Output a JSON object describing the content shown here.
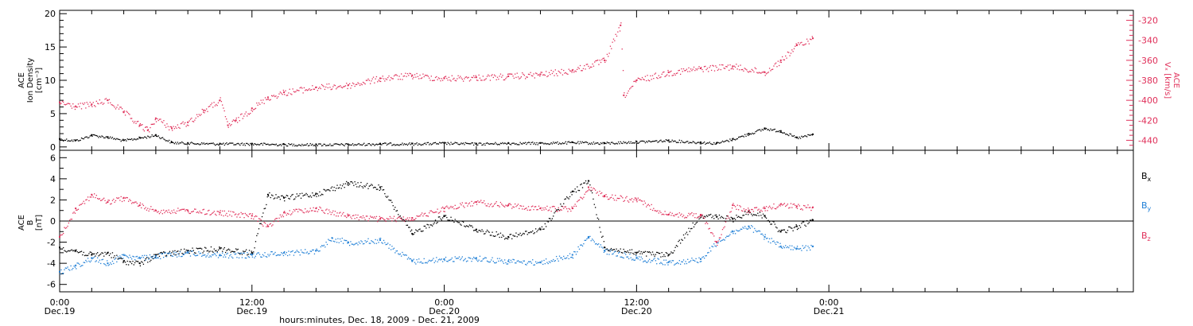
{
  "chart_data": [
    {
      "type": "scatter",
      "panel": "top",
      "ylabel_left": [
        "ACE",
        "Ion Density",
        "[cm⁻³]"
      ],
      "ylabel_right": [
        "ACE",
        "Vₓ [km/s]"
      ],
      "ylim_left": [
        -0.5,
        20.5
      ],
      "yticks_left": [
        "0",
        "5",
        "10",
        "15",
        "20"
      ],
      "ylim_right": [
        -450,
        -310
      ],
      "yticks_right": [
        "-320",
        "-340",
        "-360",
        "-380",
        "-400",
        "-420",
        "-440"
      ],
      "colors": {
        "density": "#000000",
        "vx": "#e0305a"
      },
      "series": [
        {
          "key": "density",
          "axis": "left",
          "x": [
            0,
            1,
            2,
            3,
            4,
            5,
            6,
            7,
            8,
            10,
            12,
            14,
            16,
            18,
            20,
            22,
            24,
            26,
            28,
            30,
            32,
            34,
            36,
            38,
            40,
            41,
            42,
            43,
            44,
            45,
            46,
            47
          ],
          "y": [
            1.2,
            1.0,
            1.8,
            1.5,
            1.0,
            1.4,
            1.8,
            0.7,
            0.6,
            0.5,
            0.5,
            0.4,
            0.4,
            0.4,
            0.5,
            0.5,
            0.6,
            0.5,
            0.6,
            0.6,
            0.7,
            0.6,
            0.8,
            1.0,
            0.7,
            0.6,
            1.2,
            2.0,
            2.8,
            2.4,
            1.4,
            1.9
          ]
        },
        {
          "key": "vx",
          "axis": "right",
          "x": [
            0,
            1,
            2,
            3,
            4,
            5,
            5.5,
            6,
            7,
            8,
            9,
            10,
            10.5,
            11,
            12,
            13,
            14,
            16,
            18,
            20,
            22,
            24,
            26,
            28,
            30,
            32,
            34,
            35,
            35.2,
            36,
            38,
            40,
            42,
            44,
            45,
            46,
            47
          ],
          "y": [
            -402,
            -406,
            -404,
            -400,
            -412,
            -425,
            -430,
            -418,
            -428,
            -422,
            -410,
            -400,
            -425,
            -420,
            -408,
            -397,
            -392,
            -387,
            -385,
            -378,
            -375,
            -378,
            -377,
            -376,
            -374,
            -370,
            -360,
            -325,
            -395,
            -380,
            -372,
            -368,
            -366,
            -372,
            -360,
            -345,
            -338
          ]
        }
      ]
    },
    {
      "type": "scatter",
      "panel": "bottom",
      "ylabel": [
        "ACE",
        "B",
        "[nT]"
      ],
      "ylim": [
        -6.7,
        6.7
      ],
      "yticks": [
        "6",
        "4",
        "2",
        "0",
        "-2",
        "-4",
        "-6"
      ],
      "zero_line": true,
      "legend": [
        {
          "name": "Bx",
          "base": "B",
          "sub": "x",
          "color": "#000000"
        },
        {
          "name": "By",
          "base": "B",
          "sub": "y",
          "color": "#1f7fd6"
        },
        {
          "name": "Bz",
          "base": "B",
          "sub": "z",
          "color": "#e0305a"
        }
      ],
      "legend_position": "right",
      "series": [
        {
          "name": "Bx",
          "x": [
            0,
            1,
            2,
            3,
            4,
            5,
            6,
            8,
            10,
            12,
            13,
            14,
            16,
            18,
            20,
            22,
            24,
            26,
            28,
            30,
            32,
            33,
            34,
            36,
            38,
            40,
            41,
            42,
            43,
            44,
            45,
            46,
            47
          ],
          "y": [
            -2.5,
            -2.8,
            -3.2,
            -3.0,
            -3.8,
            -4.0,
            -3.2,
            -2.8,
            -2.6,
            -3.0,
            2.5,
            2.2,
            2.6,
            3.6,
            3.2,
            -1.2,
            0.5,
            -0.8,
            -1.5,
            -0.8,
            2.8,
            3.8,
            -2.5,
            -3.0,
            -3.2,
            0.6,
            0.4,
            0.2,
            0.9,
            0.5,
            -1.0,
            -0.5,
            0.1
          ]
        },
        {
          "name": "By",
          "x": [
            0,
            1,
            2,
            3,
            4,
            5,
            6,
            8,
            10,
            12,
            14,
            16,
            17,
            18,
            20,
            22,
            24,
            26,
            28,
            30,
            32,
            33,
            34,
            36,
            38,
            40,
            41,
            42,
            43,
            44,
            45,
            46,
            47
          ],
          "y": [
            -4.8,
            -4.2,
            -3.5,
            -4.0,
            -3.2,
            -3.5,
            -3.3,
            -3.0,
            -3.2,
            -3.2,
            -3.0,
            -2.8,
            -1.6,
            -2.0,
            -1.8,
            -3.8,
            -3.6,
            -3.5,
            -3.8,
            -3.9,
            -3.2,
            -1.5,
            -2.8,
            -3.5,
            -3.9,
            -3.6,
            -2.0,
            -1.0,
            -0.5,
            -1.5,
            -2.4,
            -2.6,
            -2.4
          ]
        },
        {
          "name": "Bz",
          "x": [
            0,
            1,
            2,
            3,
            4,
            5,
            6,
            8,
            10,
            12,
            13,
            14,
            16,
            18,
            20,
            22,
            24,
            26,
            28,
            30,
            32,
            33,
            34,
            36,
            38,
            40,
            41,
            42,
            43,
            44,
            45,
            46,
            47
          ],
          "y": [
            -1.5,
            1.2,
            2.5,
            1.8,
            2.2,
            1.5,
            1.0,
            1.0,
            0.8,
            0.5,
            -0.5,
            0.8,
            1.2,
            0.5,
            0.2,
            0.3,
            1.2,
            1.8,
            1.5,
            1.2,
            1.2,
            3.2,
            2.4,
            2.0,
            0.6,
            0.6,
            -2.0,
            1.5,
            1.0,
            1.2,
            1.6,
            1.4,
            1.3
          ]
        }
      ]
    }
  ],
  "x_axis": {
    "xlim_hours": [
      0,
      67
    ],
    "ticks": [
      {
        "hours": 0,
        "time": "0:00",
        "date": "Dec.19"
      },
      {
        "hours": 12,
        "time": "12:00",
        "date": "Dec.19"
      },
      {
        "hours": 24,
        "time": "0:00",
        "date": "Dec.20"
      },
      {
        "hours": 36,
        "time": "12:00",
        "date": "Dec.20"
      },
      {
        "hours": 48,
        "time": "0:00",
        "date": "Dec.21"
      }
    ],
    "minor_step_hours": 2,
    "title": "hours:minutes, Dec. 18, 2009 - Dec. 21, 2009"
  }
}
